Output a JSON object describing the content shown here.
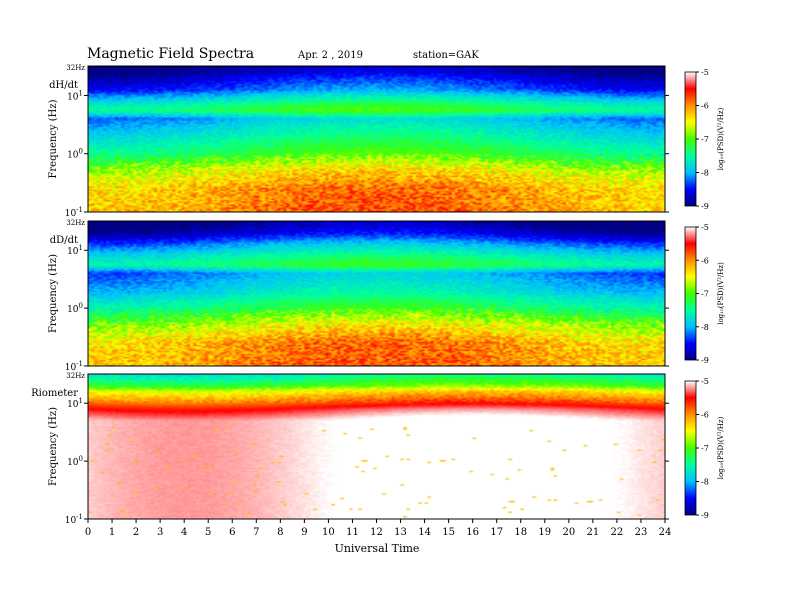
{
  "header": {
    "title": "Magnetic  Field  Spectra",
    "date": "Apr. 2  , 2019",
    "station": "station=GAK"
  },
  "chart_data": {
    "type": "heatmap",
    "xlabel": "Universal Time",
    "xlim": [
      0,
      24
    ],
    "x_ticks": [
      "0",
      "1",
      "2",
      "3",
      "4",
      "5",
      "6",
      "7",
      "8",
      "9",
      "10",
      "11",
      "12",
      "13",
      "14",
      "15",
      "16",
      "17",
      "18",
      "19",
      "20",
      "21",
      "22",
      "23",
      "24"
    ],
    "y_scale": "log",
    "ylim_hz": [
      0.1,
      32
    ],
    "ylabel": "Frequency  (Hz)",
    "y_ticks": [
      {
        "base": "10",
        "exp": "1",
        "value": 10
      },
      {
        "base": "10",
        "exp": "0",
        "value": 1
      },
      {
        "base": "10",
        "exp": "-1",
        "value": 0.1
      }
    ],
    "y_top_label": "32Hz",
    "colorbar": {
      "label": "log₁₀(PSD)(V²/Hz)",
      "range": [
        -9,
        -5
      ],
      "ticks": [
        "-5",
        "-6",
        "-7",
        "-8",
        "-9"
      ],
      "colormap": [
        "#000080",
        "#0000ff",
        "#00c0ff",
        "#00ffa0",
        "#40ff00",
        "#ffff00",
        "#ff9000",
        "#ff0000",
        "#ffffff"
      ]
    },
    "panels": [
      {
        "name": "dH/dt",
        "profile_log_psd": [
          {
            "log_f": 1.5,
            "v": -9.0
          },
          {
            "log_f": 1.3,
            "v": -8.6
          },
          {
            "log_f": 1.1,
            "v": -8.3
          },
          {
            "log_f": 0.9,
            "v": -7.6
          },
          {
            "log_f": 0.75,
            "v": -7.2
          },
          {
            "log_f": 0.6,
            "v": -8.0
          },
          {
            "log_f": 0.3,
            "v": -7.6
          },
          {
            "log_f": 0.0,
            "v": -7.2
          },
          {
            "log_f": -0.3,
            "v": -6.5
          },
          {
            "log_f": -0.6,
            "v": -6.1
          },
          {
            "log_f": -1.0,
            "v": -6.0
          }
        ]
      },
      {
        "name": "dD/dt",
        "profile_log_psd": [
          {
            "log_f": 1.5,
            "v": -9.0
          },
          {
            "log_f": 1.3,
            "v": -8.7
          },
          {
            "log_f": 1.1,
            "v": -8.1
          },
          {
            "log_f": 0.9,
            "v": -7.6
          },
          {
            "log_f": 0.75,
            "v": -7.3
          },
          {
            "log_f": 0.6,
            "v": -8.1
          },
          {
            "log_f": 0.3,
            "v": -7.8
          },
          {
            "log_f": 0.0,
            "v": -7.3
          },
          {
            "log_f": -0.3,
            "v": -6.6
          },
          {
            "log_f": -0.6,
            "v": -6.1
          },
          {
            "log_f": -1.0,
            "v": -6.0
          }
        ]
      },
      {
        "name": "Riometer",
        "profile_log_psd": [
          {
            "log_f": 1.5,
            "v": -7.6
          },
          {
            "log_f": 1.3,
            "v": -7.0
          },
          {
            "log_f": 1.2,
            "v": -6.4
          },
          {
            "log_f": 1.05,
            "v": -5.9
          },
          {
            "log_f": 0.9,
            "v": -5.4
          },
          {
            "log_f": 0.7,
            "v": -5.0
          },
          {
            "log_f": -1.0,
            "v": -5.0
          }
        ]
      }
    ]
  }
}
